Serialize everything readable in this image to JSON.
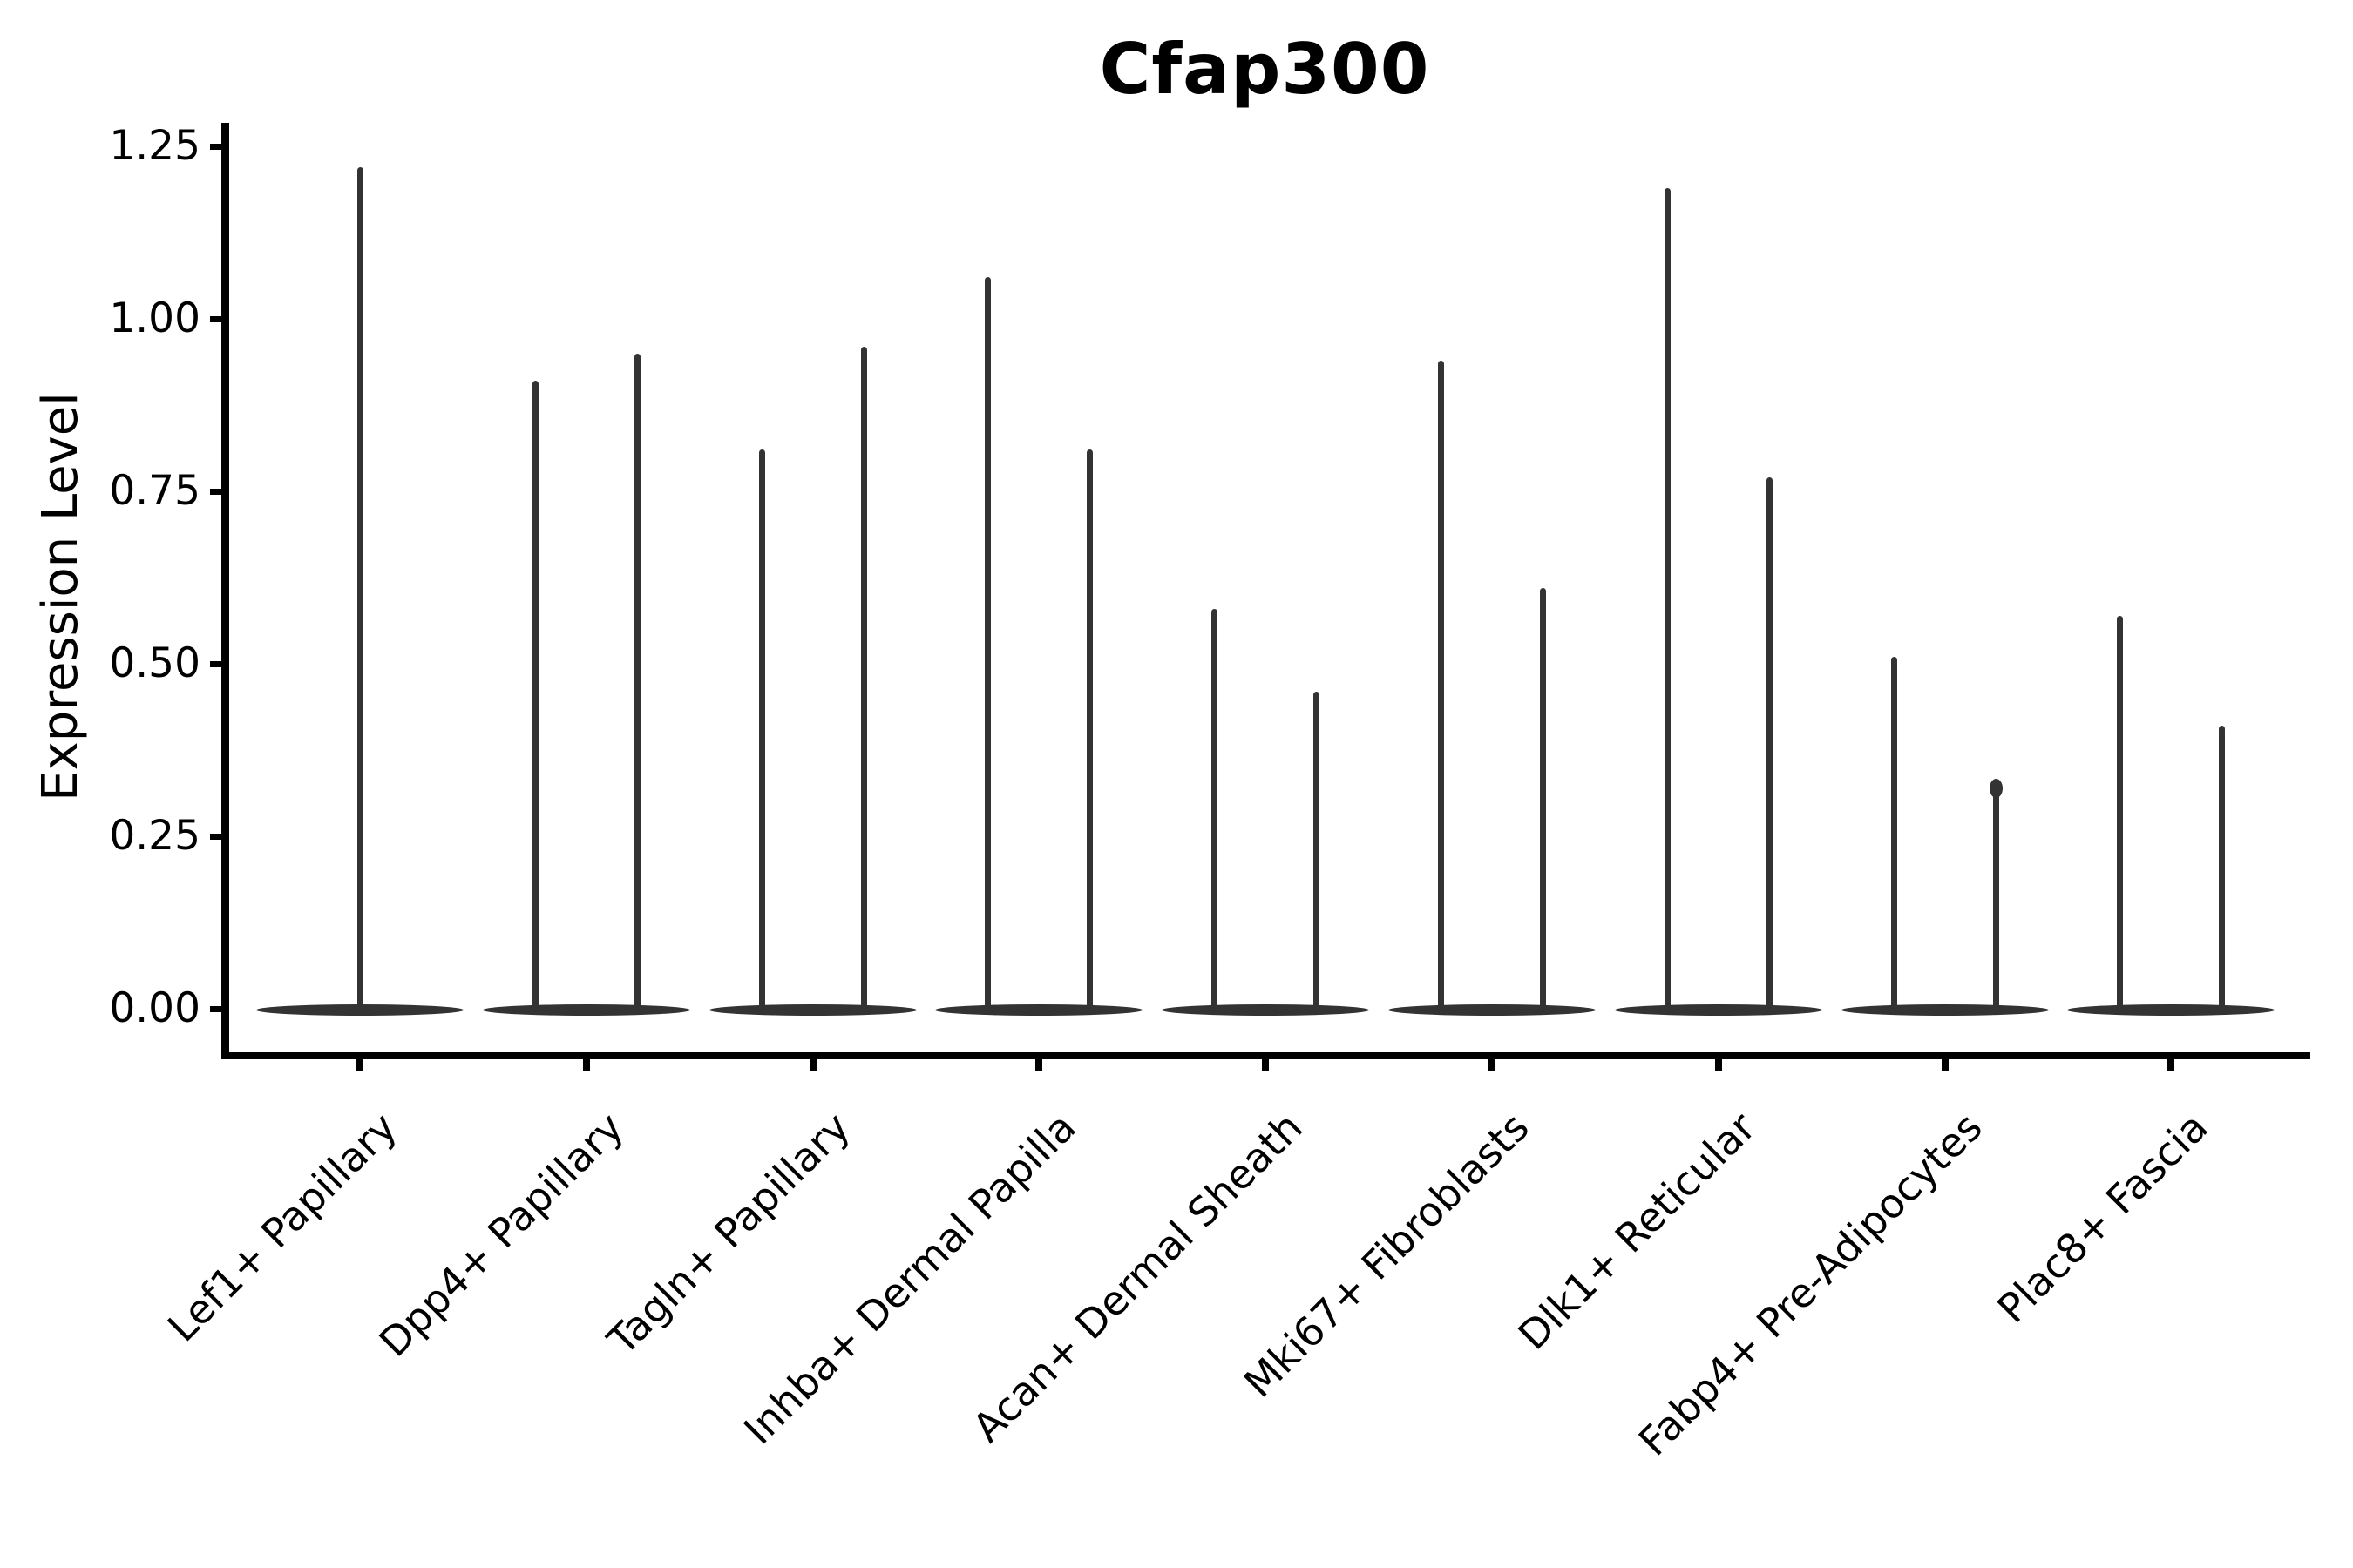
{
  "chart_data": {
    "type": "violin",
    "title": "Cfap300",
    "ylabel": "Expression Level",
    "xlabel": "",
    "ylim": [
      -0.073,
      1.284
    ],
    "grid": false,
    "legend": null,
    "violin_color": "#333333",
    "axis_color": "#000000",
    "yticks": [
      {
        "value": 0.0,
        "label": "0.00"
      },
      {
        "value": 0.25,
        "label": "0.25"
      },
      {
        "value": 0.5,
        "label": "0.50"
      },
      {
        "value": 0.75,
        "label": "0.75"
      },
      {
        "value": 1.0,
        "label": "1.00"
      },
      {
        "value": 1.25,
        "label": "1.25"
      }
    ],
    "categories": [
      "Lef1+ Papillary",
      "Dpp4+ Papillary",
      "Tagln+ Papillary",
      "Inhba+ Dermal Papilla",
      "Acan+ Dermal Sheath",
      "Mki67+ Fibroblasts",
      "Dlk1+ Reticular",
      "Fabp4+ Pre-Adipocytes",
      "Plac8+ Fascia"
    ],
    "violins": [
      {
        "category": "Lef1+ Papillary",
        "body_at": 0,
        "spikes": [
          {
            "max": 1.22
          }
        ]
      },
      {
        "category": "Dpp4+ Papillary",
        "body_at": 0,
        "spikes": [
          {
            "max": 0.91
          },
          {
            "max": 0.95
          }
        ]
      },
      {
        "category": "Tagln+ Papillary",
        "body_at": 0,
        "spikes": [
          {
            "max": 0.81
          },
          {
            "max": 0.96
          }
        ]
      },
      {
        "category": "Inhba+ Dermal Papilla",
        "body_at": 0,
        "spikes": [
          {
            "max": 1.06
          },
          {
            "max": 0.81
          }
        ]
      },
      {
        "category": "Acan+ Dermal Sheath",
        "body_at": 0,
        "spikes": [
          {
            "max": 0.58
          },
          {
            "max": 0.46
          }
        ]
      },
      {
        "category": "Mki67+ Fibroblasts",
        "body_at": 0,
        "spikes": [
          {
            "max": 0.94
          },
          {
            "max": 0.61
          }
        ]
      },
      {
        "category": "Dlk1+ Reticular",
        "body_at": 0,
        "spikes": [
          {
            "max": 1.19
          },
          {
            "max": 0.77
          }
        ]
      },
      {
        "category": "Fabp4+ Pre-Adipocytes",
        "body_at": 0,
        "spikes": [
          {
            "max": 0.51
          },
          {
            "max": 0.33,
            "knob": true
          }
        ]
      },
      {
        "category": "Plac8+ Fascia",
        "body_at": 0,
        "spikes": [
          {
            "max": 0.57
          },
          {
            "max": 0.41
          }
        ]
      }
    ]
  }
}
